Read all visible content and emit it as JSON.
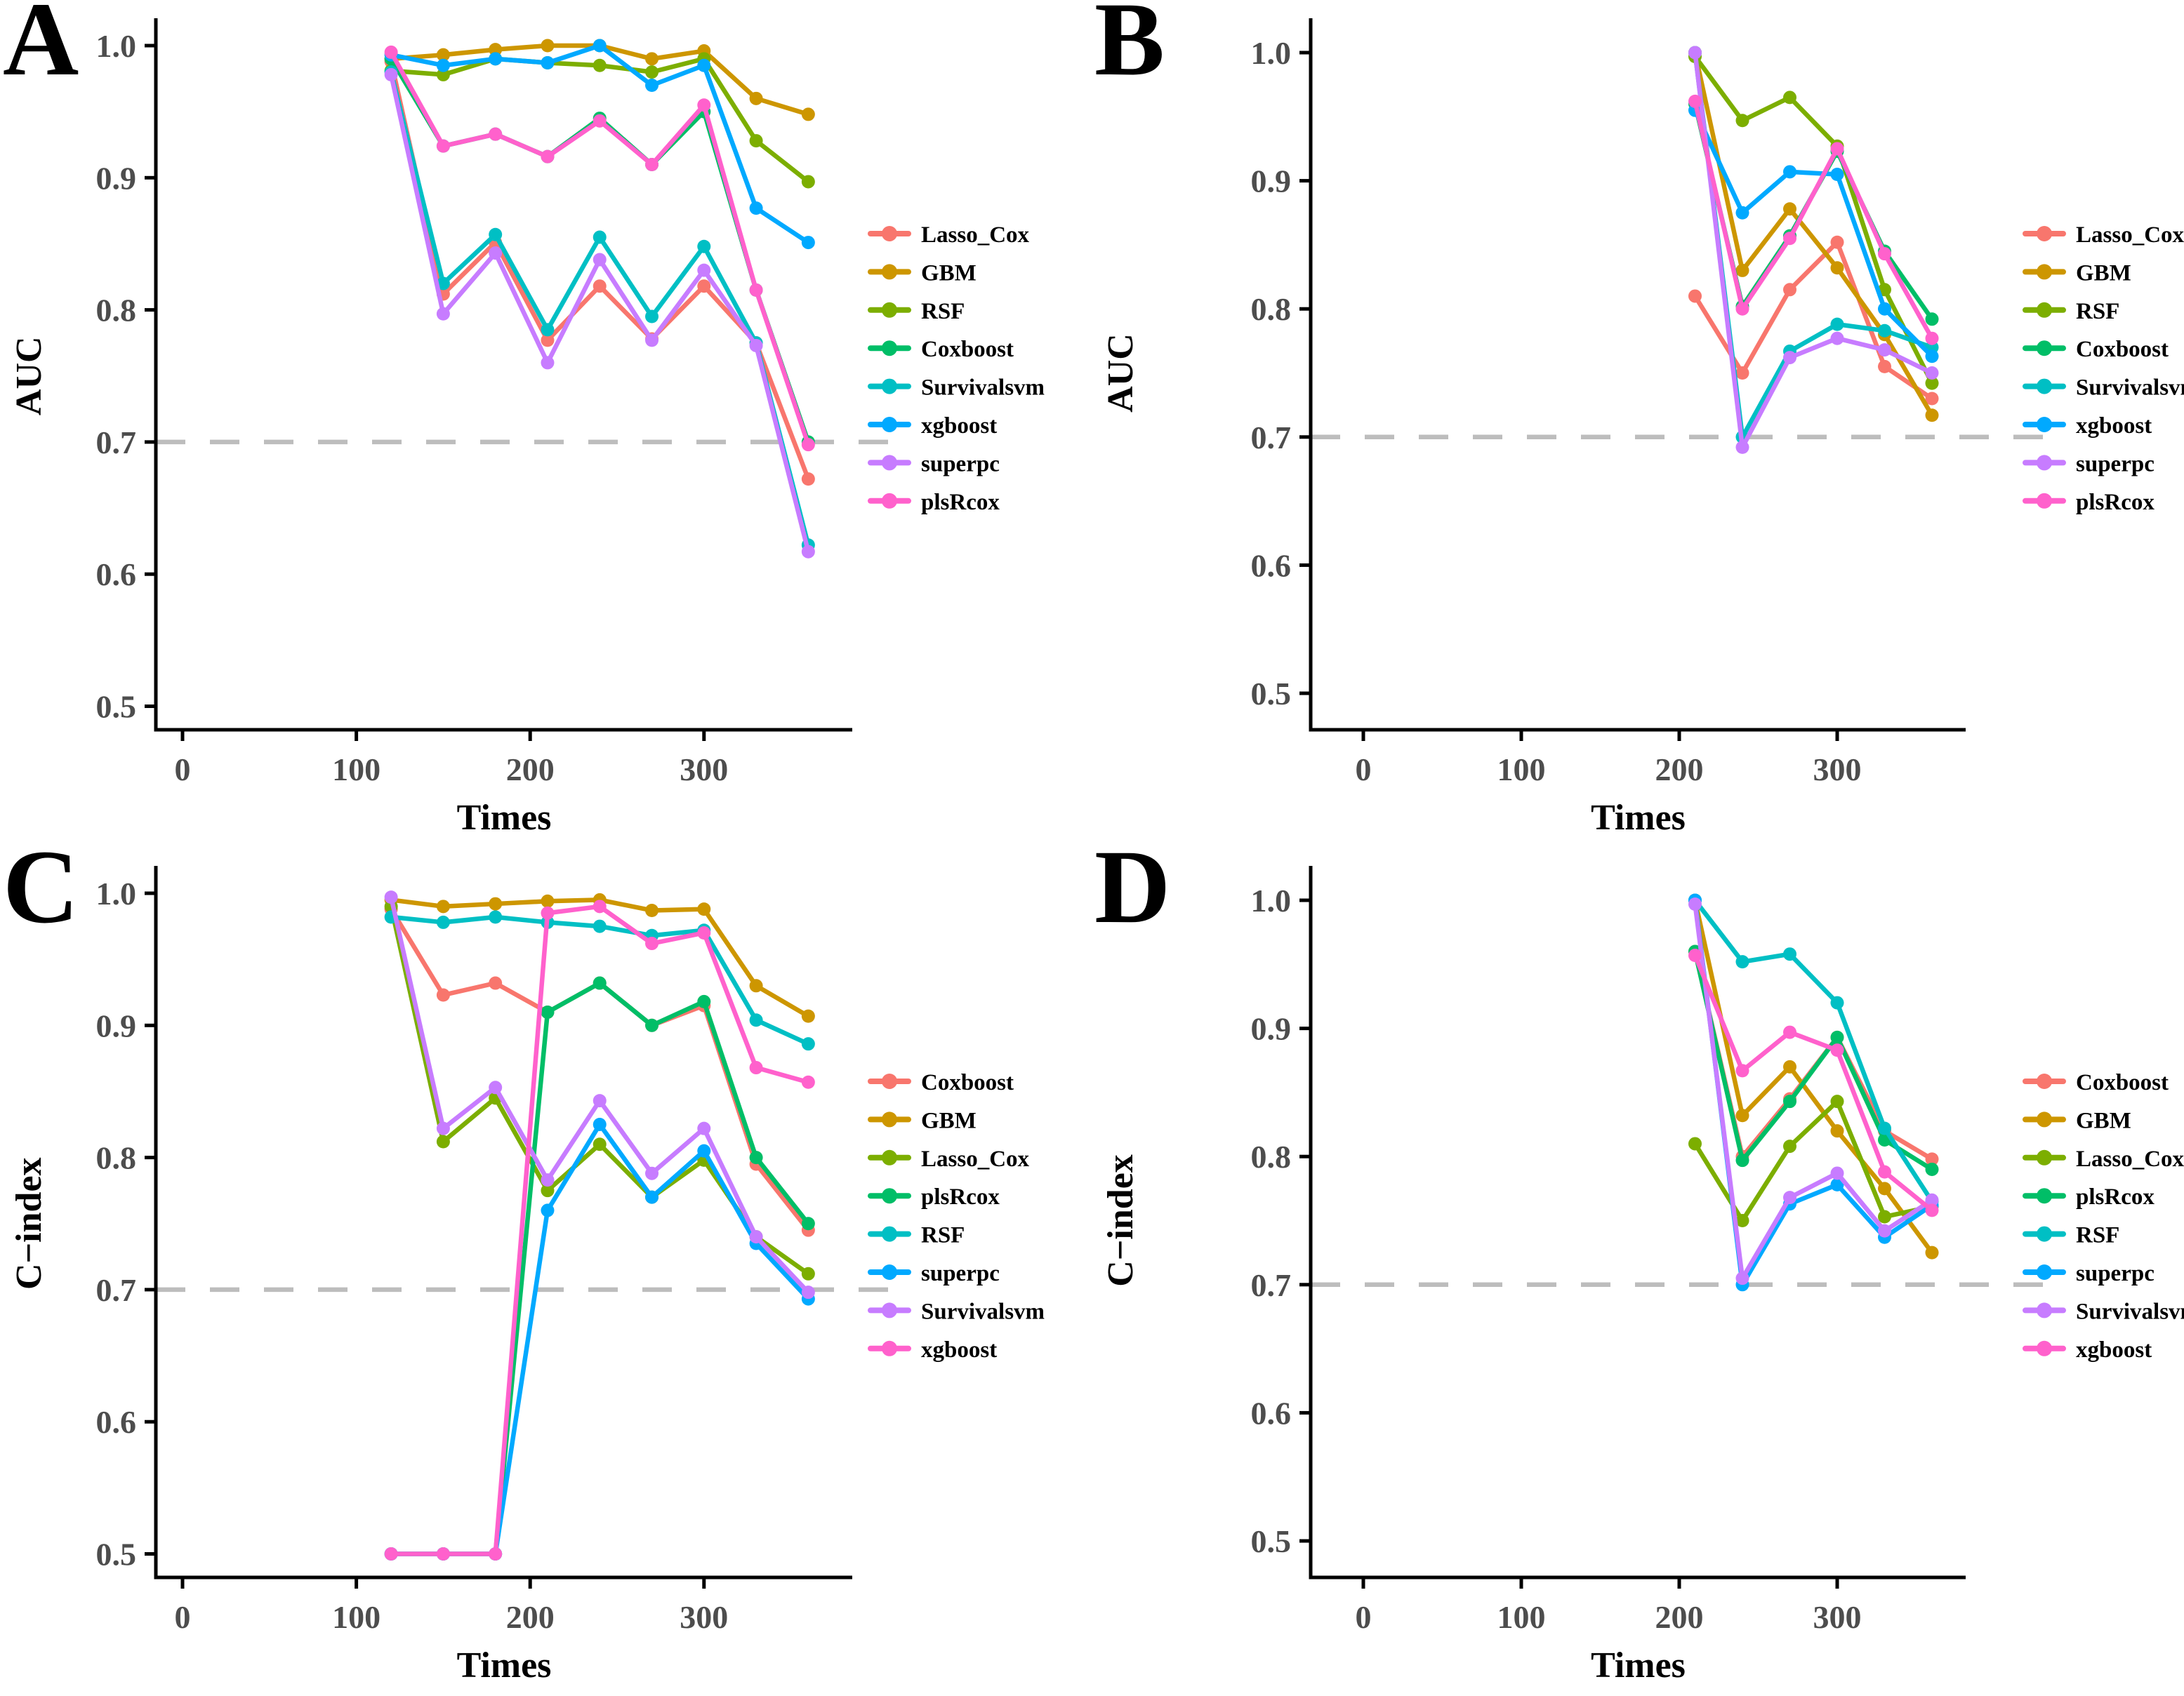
{
  "figure": {
    "background": "#FFFFFF",
    "colors": {
      "axis": "#000000",
      "tick_label": "#4D4D4D",
      "reference_line": "#BDBDBD",
      "legend_text": "#000000"
    }
  },
  "chart_data": [
    {
      "letter": "A",
      "type": "line",
      "xlabel": "Times",
      "ylabel": "AUC",
      "x_ticks": [
        0,
        100,
        200,
        300
      ],
      "y_ticks": [
        0.5,
        0.6,
        0.7,
        0.8,
        0.9,
        1.0
      ],
      "ylim": [
        0.5,
        1.0
      ],
      "xlim": [
        0,
        380
      ],
      "grid": false,
      "legend_position": "right",
      "reference_line": {
        "y": 0.7,
        "style": "dashed"
      },
      "x": [
        120,
        150,
        180,
        210,
        240,
        270,
        300,
        330,
        360
      ],
      "series": [
        {
          "name": "Lasso_Cox",
          "color": "#F8766D",
          "values": [
            0.988,
            0.812,
            0.851,
            0.777,
            0.818,
            0.778,
            0.818,
            0.775,
            0.672
          ]
        },
        {
          "name": "GBM",
          "color": "#CD9600",
          "values": [
            0.99,
            0.993,
            0.997,
            1.0,
            1.0,
            0.99,
            0.996,
            0.96,
            0.948
          ]
        },
        {
          "name": "RSF",
          "color": "#7CAE00",
          "values": [
            0.981,
            0.978,
            0.99,
            0.987,
            0.985,
            0.98,
            0.99,
            0.928,
            0.897
          ]
        },
        {
          "name": "Coxboost",
          "color": "#00BE67",
          "values": [
            0.99,
            0.924,
            0.933,
            0.916,
            0.945,
            0.91,
            0.95,
            0.815,
            0.7
          ]
        },
        {
          "name": "Survivalsvm",
          "color": "#00BFC4",
          "values": [
            0.98,
            0.82,
            0.857,
            0.785,
            0.855,
            0.795,
            0.848,
            0.775,
            0.622
          ]
        },
        {
          "name": "xgboost",
          "color": "#00A9FF",
          "values": [
            0.993,
            0.985,
            0.99,
            0.987,
            1.0,
            0.97,
            0.985,
            0.877,
            0.851
          ]
        },
        {
          "name": "superpc",
          "color": "#C77CFF",
          "values": [
            0.978,
            0.797,
            0.843,
            0.76,
            0.838,
            0.777,
            0.83,
            0.773,
            0.617
          ]
        },
        {
          "name": "plsRcox",
          "color": "#FF61CC",
          "values": [
            0.995,
            0.924,
            0.933,
            0.916,
            0.943,
            0.91,
            0.955,
            0.815,
            0.698
          ]
        }
      ]
    },
    {
      "letter": "B",
      "type": "line",
      "xlabel": "Times",
      "ylabel": "AUC",
      "x_ticks": [
        0,
        100,
        200,
        300
      ],
      "y_ticks": [
        0.5,
        0.6,
        0.7,
        0.8,
        0.9,
        1.0
      ],
      "ylim": [
        0.5,
        1.0
      ],
      "xlim": [
        0,
        380
      ],
      "grid": false,
      "legend_position": "right",
      "reference_line": {
        "y": 0.7,
        "style": "dashed"
      },
      "x": [
        210,
        240,
        270,
        300,
        330,
        360
      ],
      "series": [
        {
          "name": "Lasso_Cox",
          "color": "#F8766D",
          "values": [
            0.81,
            0.75,
            0.815,
            0.852,
            0.755,
            0.73
          ]
        },
        {
          "name": "GBM",
          "color": "#CD9600",
          "values": [
            1.0,
            0.83,
            0.878,
            0.832,
            0.78,
            0.717
          ]
        },
        {
          "name": "RSF",
          "color": "#7CAE00",
          "values": [
            0.997,
            0.947,
            0.965,
            0.927,
            0.815,
            0.742
          ]
        },
        {
          "name": "Coxboost",
          "color": "#00BE67",
          "values": [
            0.96,
            0.802,
            0.857,
            0.923,
            0.845,
            0.792
          ]
        },
        {
          "name": "Survivalsvm",
          "color": "#00BFC4",
          "values": [
            1.0,
            0.7,
            0.767,
            0.788,
            0.783,
            0.77
          ]
        },
        {
          "name": "xgboost",
          "color": "#00A9FF",
          "values": [
            0.955,
            0.875,
            0.907,
            0.905,
            0.8,
            0.763
          ]
        },
        {
          "name": "superpc",
          "color": "#C77CFF",
          "values": [
            1.0,
            0.692,
            0.762,
            0.777,
            0.768,
            0.75
          ]
        },
        {
          "name": "plsRcox",
          "color": "#FF61CC",
          "values": [
            0.962,
            0.8,
            0.855,
            0.925,
            0.843,
            0.777
          ]
        }
      ]
    },
    {
      "letter": "C",
      "type": "line",
      "xlabel": "Times",
      "ylabel": "C−index",
      "x_ticks": [
        0,
        100,
        200,
        300
      ],
      "y_ticks": [
        0.5,
        0.6,
        0.7,
        0.8,
        0.9,
        1.0
      ],
      "ylim": [
        0.5,
        1.0
      ],
      "xlim": [
        0,
        380
      ],
      "grid": false,
      "legend_position": "right",
      "reference_line": {
        "y": 0.7,
        "style": "dashed"
      },
      "x": [
        120,
        150,
        180,
        210,
        240,
        270,
        300,
        330,
        360
      ],
      "series": [
        {
          "name": "Coxboost",
          "color": "#F8766D",
          "values": [
            0.988,
            0.923,
            0.932,
            0.91,
            0.932,
            0.9,
            0.915,
            0.795,
            0.745
          ]
        },
        {
          "name": "GBM",
          "color": "#CD9600",
          "values": [
            0.995,
            0.99,
            0.992,
            0.994,
            0.995,
            0.987,
            0.988,
            0.93,
            0.907
          ]
        },
        {
          "name": "Lasso_Cox",
          "color": "#7CAE00",
          "values": [
            0.99,
            0.812,
            0.845,
            0.775,
            0.81,
            0.77,
            0.798,
            0.74,
            0.712
          ]
        },
        {
          "name": "plsRcox",
          "color": "#00BE67",
          "values": [
            0.5,
            0.5,
            0.5,
            0.91,
            0.932,
            0.9,
            0.918,
            0.8,
            0.75
          ]
        },
        {
          "name": "RSF",
          "color": "#00BFC4",
          "values": [
            0.982,
            0.978,
            0.982,
            0.978,
            0.975,
            0.968,
            0.972,
            0.904,
            0.886
          ]
        },
        {
          "name": "superpc",
          "color": "#00A9FF",
          "values": [
            0.5,
            0.5,
            0.5,
            0.76,
            0.825,
            0.77,
            0.805,
            0.735,
            0.693
          ]
        },
        {
          "name": "Survivalsvm",
          "color": "#C77CFF",
          "values": [
            0.997,
            0.822,
            0.853,
            0.783,
            0.843,
            0.788,
            0.822,
            0.74,
            0.698
          ]
        },
        {
          "name": "xgboost",
          "color": "#FF61CC",
          "values": [
            0.5,
            0.5,
            0.5,
            0.985,
            0.99,
            0.962,
            0.97,
            0.868,
            0.857
          ]
        }
      ]
    },
    {
      "letter": "D",
      "type": "line",
      "xlabel": "Times",
      "ylabel": "C−index",
      "x_ticks": [
        0,
        100,
        200,
        300
      ],
      "y_ticks": [
        0.5,
        0.6,
        0.7,
        0.8,
        0.9,
        1.0
      ],
      "ylim": [
        0.5,
        1.0
      ],
      "xlim": [
        0,
        380
      ],
      "grid": false,
      "legend_position": "right",
      "reference_line": {
        "y": 0.7,
        "style": "dashed"
      },
      "x": [
        210,
        240,
        270,
        300,
        330,
        360
      ],
      "series": [
        {
          "name": "Coxboost",
          "color": "#F8766D",
          "values": [
            0.96,
            0.8,
            0.845,
            0.893,
            0.82,
            0.798
          ]
        },
        {
          "name": "GBM",
          "color": "#CD9600",
          "values": [
            1.0,
            0.832,
            0.87,
            0.82,
            0.775,
            0.725
          ]
        },
        {
          "name": "Lasso_Cox",
          "color": "#7CAE00",
          "values": [
            0.81,
            0.75,
            0.808,
            0.843,
            0.753,
            0.761
          ]
        },
        {
          "name": "plsRcox",
          "color": "#00BE67",
          "values": [
            0.96,
            0.797,
            0.843,
            0.893,
            0.813,
            0.79
          ]
        },
        {
          "name": "RSF",
          "color": "#00BFC4",
          "values": [
            1.0,
            0.952,
            0.958,
            0.92,
            0.822,
            0.765
          ]
        },
        {
          "name": "superpc",
          "color": "#00A9FF",
          "values": [
            1.0,
            0.7,
            0.763,
            0.778,
            0.737,
            0.762
          ]
        },
        {
          "name": "Survivalsvm",
          "color": "#C77CFF",
          "values": [
            0.997,
            0.705,
            0.768,
            0.787,
            0.742,
            0.766
          ]
        },
        {
          "name": "xgboost",
          "color": "#FF61CC",
          "values": [
            0.957,
            0.867,
            0.897,
            0.883,
            0.788,
            0.758
          ]
        }
      ]
    }
  ]
}
